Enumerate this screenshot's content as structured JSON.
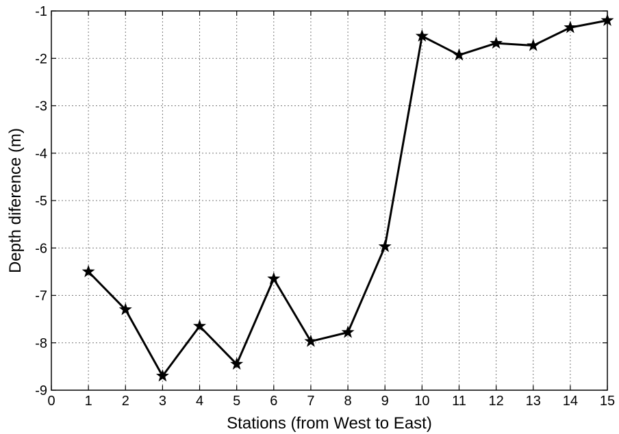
{
  "chart_data": {
    "type": "line",
    "title": "",
    "xlabel": "Stations (from West to East)",
    "ylabel": "Depth diference (m)",
    "xlim": [
      0,
      15
    ],
    "ylim": [
      -9,
      -1
    ],
    "xticks": [
      0,
      1,
      2,
      3,
      4,
      5,
      6,
      7,
      8,
      9,
      10,
      11,
      12,
      13,
      14,
      15
    ],
    "yticks": [
      -1,
      -2,
      -3,
      -4,
      -5,
      -6,
      -7,
      -8,
      -9
    ],
    "grid": true,
    "marker": "star",
    "color": "#000000",
    "series": [
      {
        "x": [
          1,
          2,
          3,
          4,
          5,
          6,
          7,
          8,
          9,
          10,
          11,
          12,
          13,
          14,
          15
        ],
        "values": [
          -6.5,
          -7.3,
          -8.7,
          -7.65,
          -8.45,
          -6.65,
          -7.97,
          -7.78,
          -5.97,
          -1.53,
          -1.93,
          -1.68,
          -1.73,
          -1.35,
          -1.2
        ]
      }
    ]
  }
}
